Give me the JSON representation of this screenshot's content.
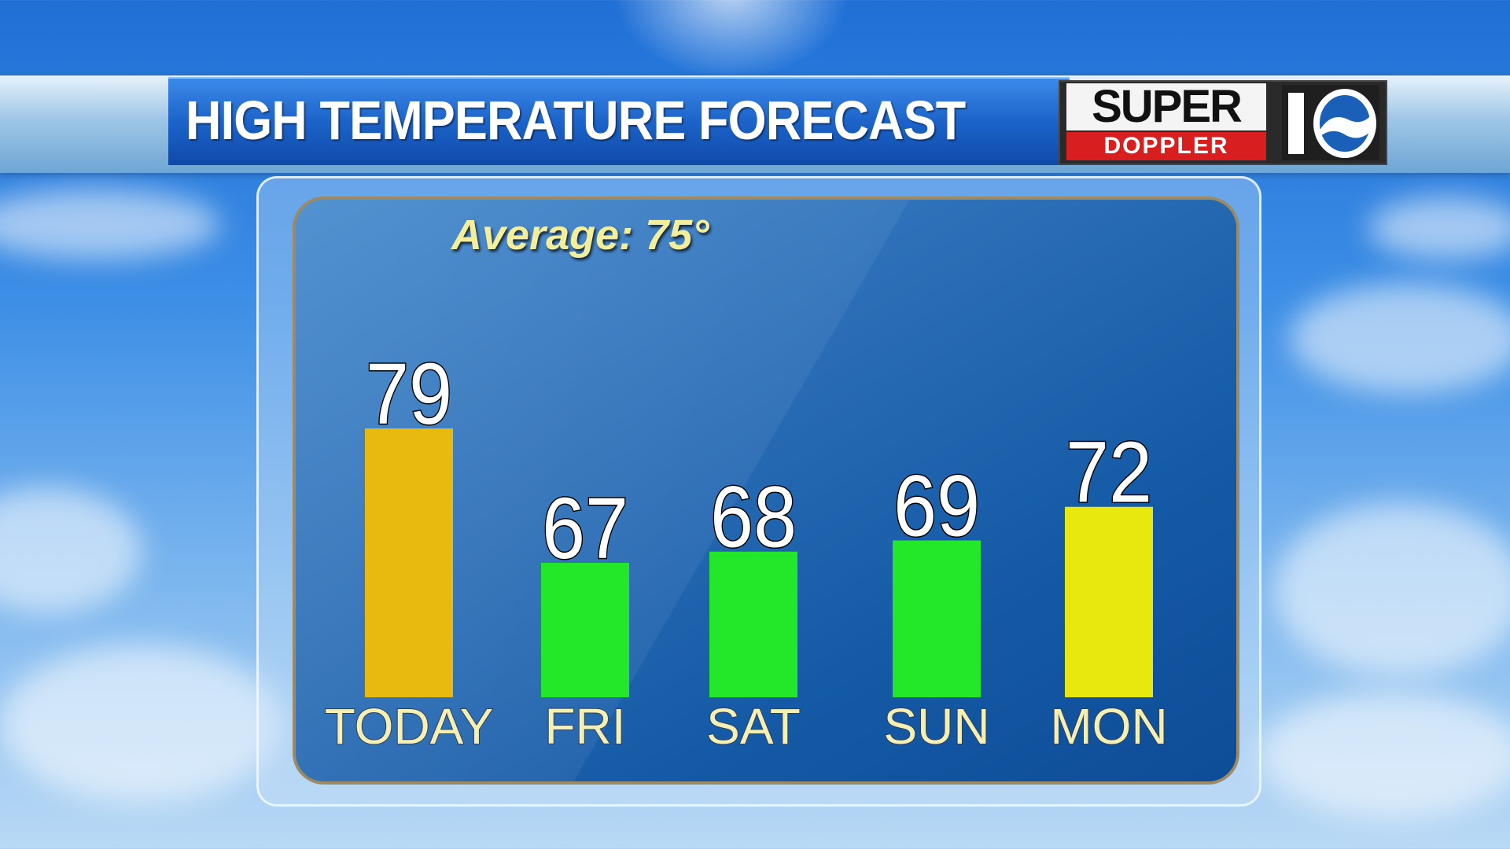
{
  "header": {
    "title": "HIGH TEMPERATURE FORECAST",
    "logo_top": "SUPER",
    "logo_bottom": "DOPPLER",
    "logo_number": "10"
  },
  "chart_data": {
    "type": "bar",
    "title": "HIGH TEMPERATURE FORECAST",
    "annotation": "Average: 75°",
    "categories": [
      "TODAY",
      "FRI",
      "SAT",
      "SUN",
      "MON"
    ],
    "values": [
      79,
      67,
      68,
      69,
      72
    ],
    "value_labels": [
      "79",
      "67",
      "68",
      "69",
      "72"
    ],
    "bar_colors": [
      "#e8b90e",
      "#23e82a",
      "#23e82a",
      "#23e82a",
      "#e8e80e"
    ],
    "xlabel": "",
    "ylabel": "",
    "grid": false,
    "legend": "none"
  }
}
